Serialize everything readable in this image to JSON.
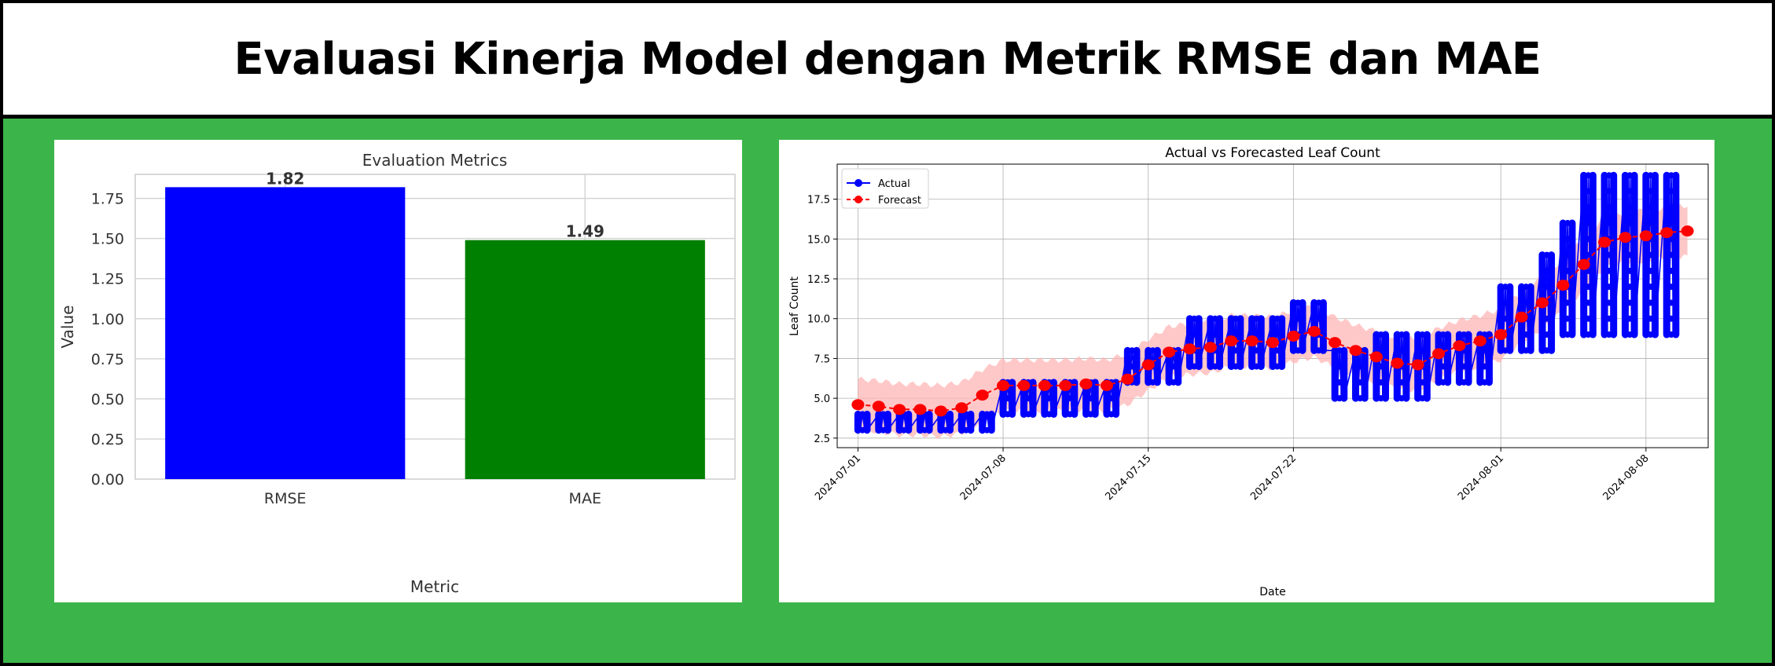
{
  "page": {
    "title": "Evaluasi Kinerja Model dengan Metrik RMSE dan MAE"
  },
  "colors": {
    "background": "#3bb54a",
    "rmse_bar": "#0000ff",
    "mae_bar": "#008000",
    "actual": "#0000ff",
    "forecast": "#ff0000",
    "band": "#ffb6b6"
  },
  "chart_data": [
    {
      "type": "bar",
      "title": "Evaluation Metrics",
      "xlabel": "Metric",
      "ylabel": "Value",
      "categories": [
        "RMSE",
        "MAE"
      ],
      "values": [
        1.82,
        1.49
      ],
      "value_labels": [
        "1.82",
        "1.49"
      ],
      "ylim": [
        0,
        1.9
      ],
      "yticks": [
        0,
        0.25,
        0.5,
        0.75,
        1.0,
        1.25,
        1.5,
        1.75
      ],
      "ytick_labels": [
        "0.00",
        "0.25",
        "0.50",
        "0.75",
        "1.00",
        "1.25",
        "1.50",
        "1.75"
      ],
      "grid": true
    },
    {
      "type": "line",
      "title": "Actual vs Forecasted Leaf Count",
      "xlabel": "Date",
      "ylabel": "Leaf Count",
      "ylim": [
        1.9,
        19.7
      ],
      "xlim": [
        "2024-06-30",
        "2024-08-11"
      ],
      "yticks": [
        2.5,
        5.0,
        7.5,
        10.0,
        12.5,
        15.0,
        17.5
      ],
      "ytick_labels": [
        "2.5",
        "5.0",
        "7.5",
        "10.0",
        "12.5",
        "15.0",
        "17.5"
      ],
      "xticks": [
        "2024-07-01",
        "2024-07-08",
        "2024-07-15",
        "2024-07-22",
        "2024-08-01",
        "2024-08-08"
      ],
      "xtick_labels": [
        "2024-07-01",
        "2024-07-08",
        "2024-07-15",
        "2024-07-22",
        "2024-08-01",
        "2024-08-08"
      ],
      "legend": {
        "position": "top-left",
        "entries": [
          "Actual",
          "Forecast"
        ]
      },
      "grid": true,
      "series": [
        {
          "name": "Actual",
          "style": "solid line with circle markers",
          "daily_ranges": [
            {
              "date": "2024-07-01",
              "min": 3,
              "max": 4
            },
            {
              "date": "2024-07-02",
              "min": 3,
              "max": 4
            },
            {
              "date": "2024-07-03",
              "min": 3,
              "max": 4
            },
            {
              "date": "2024-07-04",
              "min": 3,
              "max": 4
            },
            {
              "date": "2024-07-05",
              "min": 3,
              "max": 4
            },
            {
              "date": "2024-07-06",
              "min": 3,
              "max": 4
            },
            {
              "date": "2024-07-07",
              "min": 3,
              "max": 4
            },
            {
              "date": "2024-07-08",
              "min": 4,
              "max": 6
            },
            {
              "date": "2024-07-09",
              "min": 4,
              "max": 6
            },
            {
              "date": "2024-07-10",
              "min": 4,
              "max": 6
            },
            {
              "date": "2024-07-11",
              "min": 4,
              "max": 6
            },
            {
              "date": "2024-07-12",
              "min": 4,
              "max": 6
            },
            {
              "date": "2024-07-13",
              "min": 4,
              "max": 6
            },
            {
              "date": "2024-07-14",
              "min": 6,
              "max": 8
            },
            {
              "date": "2024-07-15",
              "min": 6,
              "max": 8
            },
            {
              "date": "2024-07-16",
              "min": 6,
              "max": 8
            },
            {
              "date": "2024-07-17",
              "min": 7,
              "max": 10
            },
            {
              "date": "2024-07-18",
              "min": 7,
              "max": 10
            },
            {
              "date": "2024-07-19",
              "min": 7,
              "max": 10
            },
            {
              "date": "2024-07-20",
              "min": 7,
              "max": 10
            },
            {
              "date": "2024-07-21",
              "min": 7,
              "max": 10
            },
            {
              "date": "2024-07-22",
              "min": 8,
              "max": 11
            },
            {
              "date": "2024-07-23",
              "min": 8,
              "max": 11
            },
            {
              "date": "2024-07-24",
              "min": 5,
              "max": 8
            },
            {
              "date": "2024-07-25",
              "min": 5,
              "max": 8
            },
            {
              "date": "2024-07-26",
              "min": 5,
              "max": 9
            },
            {
              "date": "2024-07-27",
              "min": 5,
              "max": 9
            },
            {
              "date": "2024-07-28",
              "min": 5,
              "max": 9
            },
            {
              "date": "2024-07-29",
              "min": 6,
              "max": 9
            },
            {
              "date": "2024-07-30",
              "min": 6,
              "max": 9
            },
            {
              "date": "2024-07-31",
              "min": 6,
              "max": 9
            },
            {
              "date": "2024-08-01",
              "min": 8,
              "max": 12
            },
            {
              "date": "2024-08-02",
              "min": 8,
              "max": 12
            },
            {
              "date": "2024-08-03",
              "min": 8,
              "max": 14
            },
            {
              "date": "2024-08-04",
              "min": 9,
              "max": 16
            },
            {
              "date": "2024-08-05",
              "min": 9,
              "max": 19
            },
            {
              "date": "2024-08-06",
              "min": 9,
              "max": 19
            },
            {
              "date": "2024-08-07",
              "min": 9,
              "max": 19
            },
            {
              "date": "2024-08-08",
              "min": 9,
              "max": 19
            },
            {
              "date": "2024-08-09",
              "min": 9,
              "max": 19
            }
          ]
        },
        {
          "name": "Forecast",
          "style": "dashed line with circle markers",
          "points": [
            {
              "date": "2024-07-01",
              "value": 4.6
            },
            {
              "date": "2024-07-02",
              "value": 4.5
            },
            {
              "date": "2024-07-03",
              "value": 4.3
            },
            {
              "date": "2024-07-04",
              "value": 4.3
            },
            {
              "date": "2024-07-05",
              "value": 4.2
            },
            {
              "date": "2024-07-06",
              "value": 4.4
            },
            {
              "date": "2024-07-07",
              "value": 5.2
            },
            {
              "date": "2024-07-08",
              "value": 5.8
            },
            {
              "date": "2024-07-09",
              "value": 5.8
            },
            {
              "date": "2024-07-10",
              "value": 5.8
            },
            {
              "date": "2024-07-11",
              "value": 5.8
            },
            {
              "date": "2024-07-12",
              "value": 5.9
            },
            {
              "date": "2024-07-13",
              "value": 5.8
            },
            {
              "date": "2024-07-14",
              "value": 6.2
            },
            {
              "date": "2024-07-15",
              "value": 7.1
            },
            {
              "date": "2024-07-16",
              "value": 7.9
            },
            {
              "date": "2024-07-17",
              "value": 8.1
            },
            {
              "date": "2024-07-18",
              "value": 8.2
            },
            {
              "date": "2024-07-19",
              "value": 8.6
            },
            {
              "date": "2024-07-20",
              "value": 8.6
            },
            {
              "date": "2024-07-21",
              "value": 8.5
            },
            {
              "date": "2024-07-22",
              "value": 8.9
            },
            {
              "date": "2024-07-23",
              "value": 9.2
            },
            {
              "date": "2024-07-24",
              "value": 8.5
            },
            {
              "date": "2024-07-25",
              "value": 8.0
            },
            {
              "date": "2024-07-26",
              "value": 7.6
            },
            {
              "date": "2024-07-27",
              "value": 7.2
            },
            {
              "date": "2024-07-28",
              "value": 7.1
            },
            {
              "date": "2024-07-29",
              "value": 7.8
            },
            {
              "date": "2024-07-30",
              "value": 8.3
            },
            {
              "date": "2024-07-31",
              "value": 8.6
            },
            {
              "date": "2024-08-01",
              "value": 9.0
            },
            {
              "date": "2024-08-02",
              "value": 10.1
            },
            {
              "date": "2024-08-03",
              "value": 11.0
            },
            {
              "date": "2024-08-04",
              "value": 12.1
            },
            {
              "date": "2024-08-05",
              "value": 13.4
            },
            {
              "date": "2024-08-06",
              "value": 14.8
            },
            {
              "date": "2024-08-07",
              "value": 15.1
            },
            {
              "date": "2024-08-08",
              "value": 15.2
            },
            {
              "date": "2024-08-09",
              "value": 15.4
            },
            {
              "date": "2024-08-10",
              "value": 15.5
            }
          ],
          "band_half_width": 1.6
        }
      ]
    }
  ]
}
